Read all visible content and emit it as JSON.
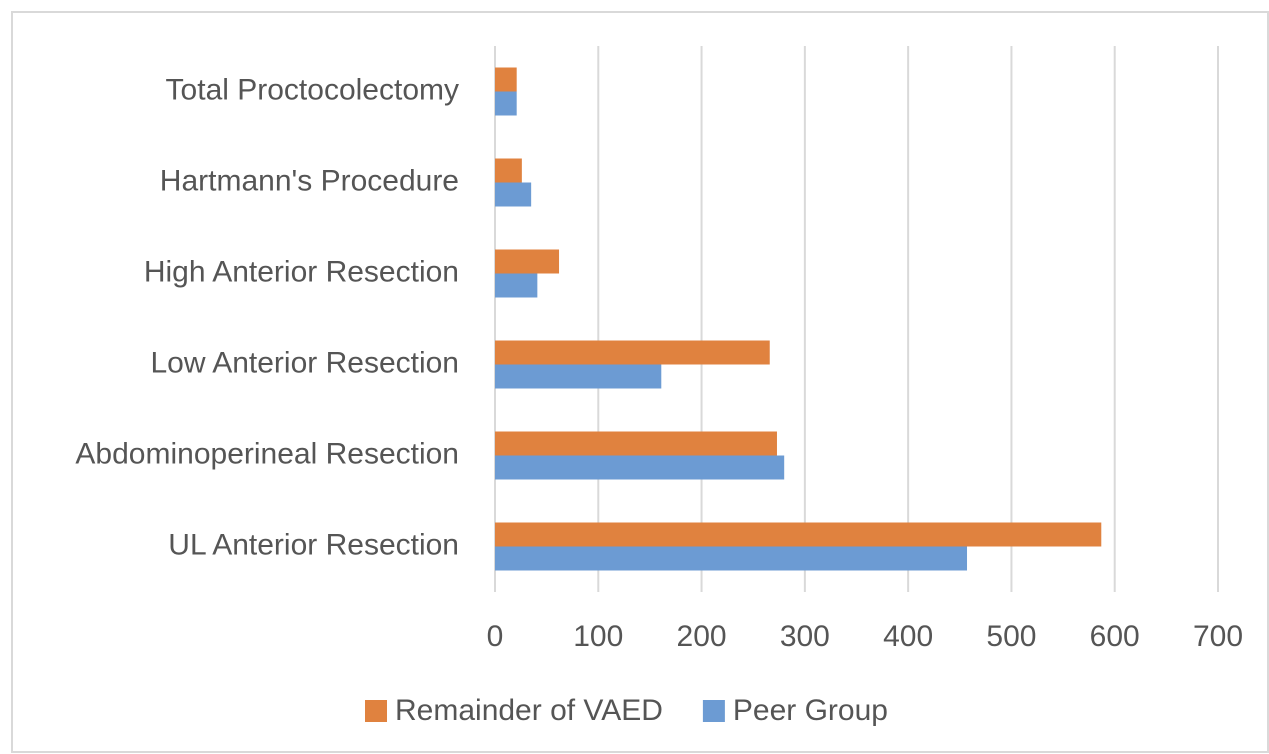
{
  "chart_data": {
    "type": "hbar",
    "categories": [
      "Total Proctocolectomy",
      "Hartmann's Procedure",
      "High Anterior Resection",
      "Low Anterior Resection",
      "Abdominoperineal Resection",
      "UL Anterior Resection"
    ],
    "series": [
      {
        "name": "Remainder of VAED",
        "color": "#e0823f",
        "values": [
          21,
          26,
          62,
          266,
          273,
          587
        ]
      },
      {
        "name": "Peer Group",
        "color": "#6c9bd3",
        "values": [
          21,
          35,
          41,
          161,
          280,
          457
        ]
      }
    ],
    "xlim": [
      0,
      700
    ],
    "xticks": [
      0,
      100,
      200,
      300,
      400,
      500,
      600,
      700
    ],
    "grid": true,
    "legend": "bottom"
  }
}
